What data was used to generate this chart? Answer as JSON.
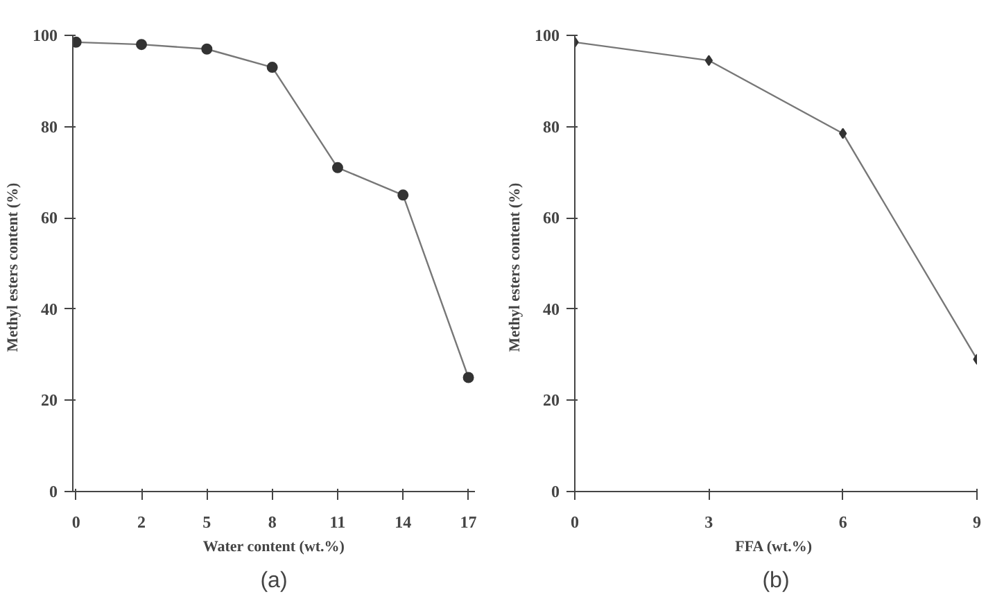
{
  "chart_data": [
    {
      "type": "line",
      "xlabel": "Water content (wt.%)",
      "ylabel": "Methyl esters  content  (%)",
      "annotations": [
        "(a)"
      ],
      "categories": [
        "0",
        "2",
        "5",
        "8",
        "11",
        "14",
        "17"
      ],
      "series": [
        {
          "color": "#333333",
          "values": [
            98.5,
            98,
            97,
            93,
            71,
            65,
            25
          ]
        }
      ],
      "ylim": [
        0,
        100
      ],
      "yticks": [
        0,
        20,
        40,
        60,
        80,
        100
      ],
      "grid": false,
      "marker": "circle",
      "line_style": "solid"
    },
    {
      "type": "line",
      "xlabel": "FFA  (wt.%)",
      "ylabel": "Methyl esters  content  (%)",
      "annotations": [
        "(b)"
      ],
      "x": [
        0,
        3,
        6,
        9
      ],
      "series": [
        {
          "color": "#333333",
          "values": [
            98.5,
            94.5,
            78.5,
            29
          ]
        }
      ],
      "xlim": [
        0,
        9
      ],
      "xticks": [
        0,
        3,
        6,
        9
      ],
      "ylim": [
        0,
        100
      ],
      "yticks": [
        0,
        20,
        40,
        60,
        80,
        100
      ],
      "grid": false,
      "marker": "diamond",
      "line_style": "solid"
    }
  ]
}
